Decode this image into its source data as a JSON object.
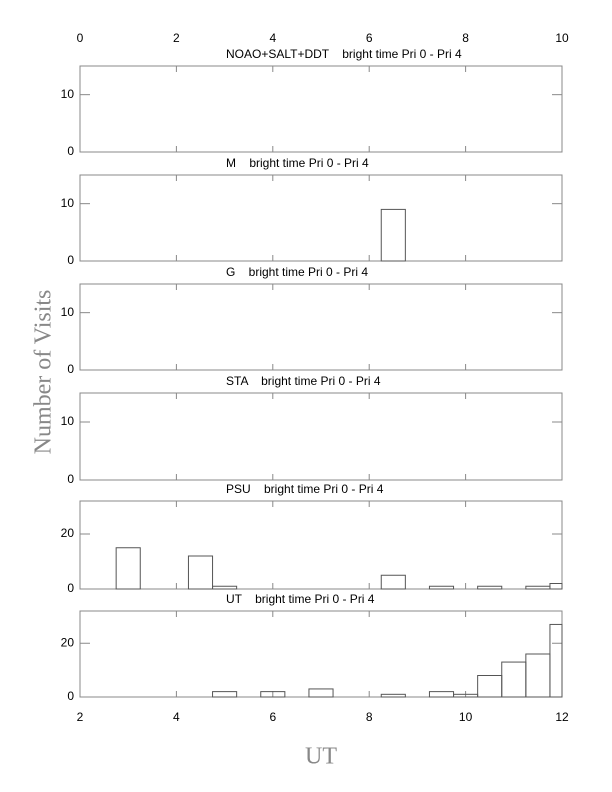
{
  "chart_data": [
    {
      "type": "histogram",
      "title": "NOAO+SALT+DDT    bright time Pri 0 - Pri 4",
      "ylabel": "Number of Visits",
      "bins": [
        2,
        2.25,
        2.75,
        3.25,
        3.75,
        4.25,
        4.75,
        5.25,
        5.75,
        6.25,
        6.75,
        7.25,
        7.75,
        8.25,
        8.75,
        9.25,
        9.75,
        10.25,
        10.75,
        11.25,
        11.75,
        12
      ],
      "counts": [
        0,
        0,
        0,
        0,
        0,
        0,
        0,
        0,
        0,
        0,
        0,
        0,
        0,
        0,
        0,
        0,
        0,
        0,
        0,
        0,
        0
      ],
      "xlim": [
        2,
        12
      ],
      "ylim": [
        0,
        15
      ],
      "yticks": [
        0,
        10
      ],
      "x2lim": [
        0,
        10
      ],
      "x2ticks": [
        0,
        2,
        4,
        6,
        8,
        10
      ]
    },
    {
      "type": "histogram",
      "title": "M    bright time Pri 0 - Pri 4",
      "bins": [
        2,
        2.25,
        2.75,
        3.25,
        3.75,
        4.25,
        4.75,
        5.25,
        5.75,
        6.25,
        6.75,
        7.25,
        7.75,
        8.25,
        8.75,
        9.25,
        9.75,
        10.25,
        10.75,
        11.25,
        11.75,
        12
      ],
      "counts": [
        0,
        0,
        0,
        0,
        0,
        0,
        0,
        0,
        0,
        0,
        0,
        0,
        0,
        9,
        0,
        0,
        0,
        0,
        0,
        0,
        0
      ],
      "xlim": [
        2,
        12
      ],
      "ylim": [
        0,
        15
      ],
      "yticks": [
        0,
        10
      ]
    },
    {
      "type": "histogram",
      "title": "G    bright time Pri 0 - Pri 4",
      "bins": [
        2,
        2.25,
        2.75,
        3.25,
        3.75,
        4.25,
        4.75,
        5.25,
        5.75,
        6.25,
        6.75,
        7.25,
        7.75,
        8.25,
        8.75,
        9.25,
        9.75,
        10.25,
        10.75,
        11.25,
        11.75,
        12
      ],
      "counts": [
        0,
        0,
        0,
        0,
        0,
        0,
        0,
        0,
        0,
        0,
        0,
        0,
        0,
        0,
        0,
        0,
        0,
        0,
        0,
        0,
        0
      ],
      "xlim": [
        2,
        12
      ],
      "ylim": [
        0,
        15
      ],
      "yticks": [
        0,
        10
      ]
    },
    {
      "type": "histogram",
      "title": "STA    bright time Pri 0 - Pri 4",
      "bins": [
        2,
        2.25,
        2.75,
        3.25,
        3.75,
        4.25,
        4.75,
        5.25,
        5.75,
        6.25,
        6.75,
        7.25,
        7.75,
        8.25,
        8.75,
        9.25,
        9.75,
        10.25,
        10.75,
        11.25,
        11.75,
        12
      ],
      "counts": [
        0,
        0,
        0,
        0,
        0,
        0,
        0,
        0,
        0,
        0,
        0,
        0,
        0,
        0,
        0,
        0,
        0,
        0,
        0,
        0,
        0
      ],
      "xlim": [
        2,
        12
      ],
      "ylim": [
        0,
        15
      ],
      "yticks": [
        0,
        10
      ]
    },
    {
      "type": "histogram",
      "title": "PSU    bright time Pri 0 - Pri 4",
      "bins": [
        2,
        2.25,
        2.75,
        3.25,
        3.75,
        4.25,
        4.75,
        5.25,
        5.75,
        6.25,
        6.75,
        7.25,
        7.75,
        8.25,
        8.75,
        9.25,
        9.75,
        10.25,
        10.75,
        11.25,
        11.75,
        12
      ],
      "counts": [
        0,
        0,
        15,
        0,
        0,
        12,
        1,
        0,
        0,
        0,
        0,
        0,
        0,
        5,
        0,
        1,
        0,
        1,
        0,
        1,
        2
      ],
      "xlim": [
        2,
        12
      ],
      "ylim": [
        0,
        32
      ],
      "yticks": [
        0,
        20
      ]
    },
    {
      "type": "histogram",
      "title": "UT    bright time Pri 0 - Pri 4",
      "xlabel": "UT",
      "bins": [
        2,
        2.25,
        2.75,
        3.25,
        3.75,
        4.25,
        4.75,
        5.25,
        5.75,
        6.25,
        6.75,
        7.25,
        7.75,
        8.25,
        8.75,
        9.25,
        9.75,
        10.25,
        10.75,
        11.25,
        11.75,
        12
      ],
      "counts": [
        0,
        0,
        0,
        0,
        0,
        0,
        2,
        0,
        2,
        0,
        3,
        0,
        0,
        1,
        0,
        2,
        1,
        8,
        13,
        16,
        27
      ],
      "xlim": [
        2,
        12
      ],
      "ylim": [
        0,
        32
      ],
      "yticks": [
        0,
        20
      ],
      "xticks": [
        2,
        4,
        6,
        8,
        10,
        12
      ]
    }
  ]
}
